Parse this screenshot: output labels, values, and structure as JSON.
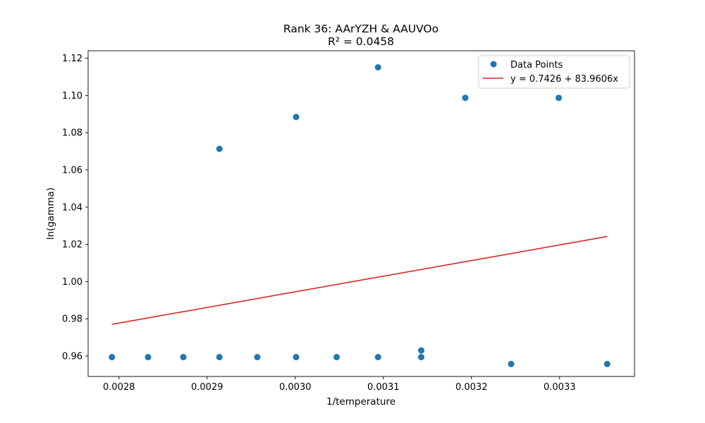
{
  "chart_data": {
    "type": "scatter",
    "title": "Rank 36: AArYZH & AAUVOo",
    "subtitle": "R² = 0.0458",
    "xlabel": "1/temperature",
    "ylabel": "ln(gamma)",
    "xlim": [
      0.002765,
      0.003385
    ],
    "ylim": [
      0.949,
      1.124
    ],
    "xticks": [
      "0.0028",
      "0.0029",
      "0.0030",
      "0.0031",
      "0.0032",
      "0.0033"
    ],
    "yticks": [
      "0.96",
      "0.98",
      "1.00",
      "1.02",
      "1.04",
      "1.06",
      "1.08",
      "1.10",
      "1.12"
    ],
    "grid": false,
    "legend_position": "top-right",
    "series": [
      {
        "name": "Data Points",
        "kind": "scatter",
        "color": "#1f77b4",
        "points": [
          [
            0.002792,
            0.9594
          ],
          [
            0.002833,
            0.9594
          ],
          [
            0.002873,
            0.9594
          ],
          [
            0.002914,
            0.9594
          ],
          [
            0.002914,
            1.0713
          ],
          [
            0.002957,
            0.9594
          ],
          [
            0.003001,
            0.9594
          ],
          [
            0.003001,
            1.0884
          ],
          [
            0.003047,
            0.9594
          ],
          [
            0.003094,
            0.9594
          ],
          [
            0.003094,
            1.1151
          ],
          [
            0.003143,
            0.9594
          ],
          [
            0.003143,
            0.963
          ],
          [
            0.003193,
            1.0987
          ],
          [
            0.003245,
            0.9557
          ],
          [
            0.003299,
            1.0987
          ],
          [
            0.003354,
            0.9557
          ]
        ]
      },
      {
        "name": "y = 0.7426 + 83.9606x",
        "kind": "line",
        "color": "#d62728",
        "intercept": 0.7426,
        "slope": 83.9606,
        "x_range": [
          0.002792,
          0.003354
        ]
      }
    ]
  }
}
